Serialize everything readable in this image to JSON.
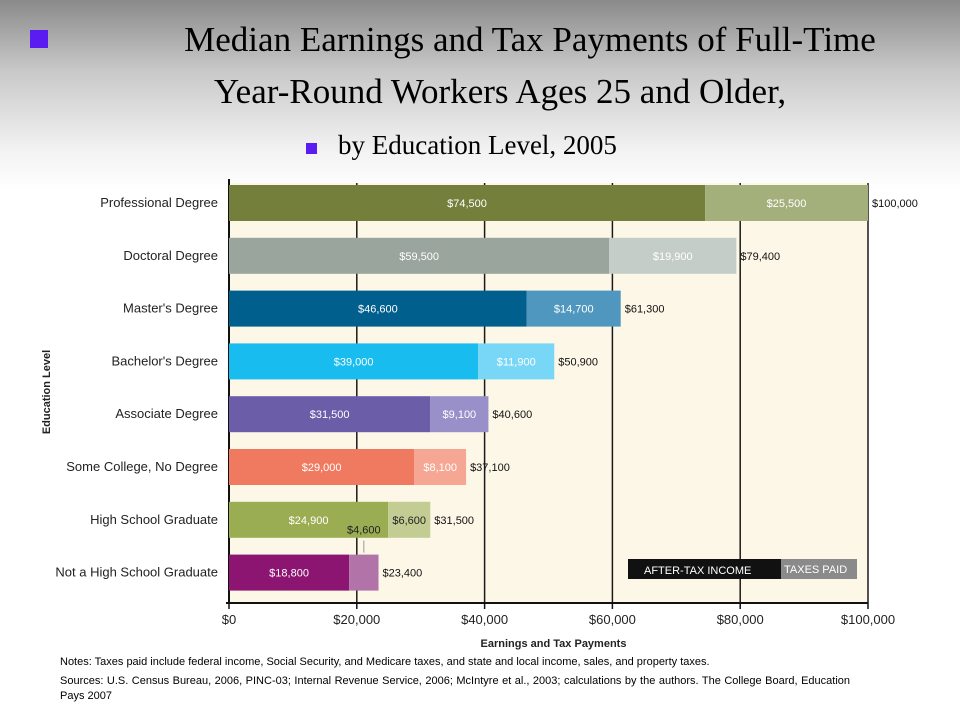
{
  "title_line1": "Median Earnings and Tax Payments of Full-Time",
  "title_line2": "Year-Round Workers Ages 25 and Older,",
  "subtitle": "by Education Level, 2005",
  "notes": "Notes: Taxes paid include federal income, Social Security, and Medicare taxes, and state and local income, sales, and property taxes.",
  "sources": "Sources: U.S. Census Bureau, 2006, PINC-03; Internal Revenue Service, 2006; McIntyre et al., 2003; calculations by the authors. The College Board, Education Pays 2007",
  "colors": {
    "bullet": "#5a1cf0",
    "plot_bg": "#fdf7e7"
  },
  "chart_data": {
    "type": "bar",
    "orientation": "horizontal",
    "stacked": true,
    "xlabel": "Earnings and Tax Payments",
    "ylabel": "Education Level",
    "xlim": [
      0,
      100000
    ],
    "x_ticks": [
      0,
      20000,
      40000,
      60000,
      80000,
      100000
    ],
    "x_tick_labels": [
      "$0",
      "$20,000",
      "$40,000",
      "$60,000",
      "$80,000",
      "$100,000"
    ],
    "categories": [
      "Professional Degree",
      "Doctoral Degree",
      "Master's Degree",
      "Bachelor's Degree",
      "Associate Degree",
      "Some College, No Degree",
      "High School Graduate",
      "Not a High School Graduate"
    ],
    "series": [
      {
        "name": "AFTER-TAX INCOME",
        "values": [
          74500,
          59500,
          46600,
          39000,
          31500,
          29000,
          24900,
          18800
        ],
        "labels": [
          "$74,500",
          "$59,500",
          "$46,600",
          "$39,000",
          "$31,500",
          "$29,000",
          "$24,900",
          "$18,800"
        ]
      },
      {
        "name": "TAXES PAID",
        "values": [
          25500,
          19900,
          14700,
          11900,
          9100,
          8100,
          6600,
          4600
        ],
        "labels": [
          "$25,500",
          "$19,900",
          "$14,700",
          "$11,900",
          "$9,100",
          "$8,100",
          "$6,600",
          "$4,600"
        ]
      }
    ],
    "totals": [
      100000,
      79400,
      61300,
      50900,
      40600,
      37100,
      31500,
      23400
    ],
    "total_labels": [
      "$100,000",
      "$79,400",
      "$61,300",
      "$50,900",
      "$40,600",
      "$37,100",
      "$31,500",
      "$23,400"
    ],
    "income_colors": [
      "#737f3a",
      "#9aa59e",
      "#005f8c",
      "#18bcef",
      "#6b5da8",
      "#f07a60",
      "#9aad52",
      "#8b1570"
    ],
    "tax_colors": [
      "#a4b07c",
      "#c5cdc8",
      "#4f97bf",
      "#78d7f6",
      "#9a90c9",
      "#f5a794",
      "#c2cc93",
      "#b273a8"
    ],
    "grid": true,
    "legend": "bottom-right"
  }
}
